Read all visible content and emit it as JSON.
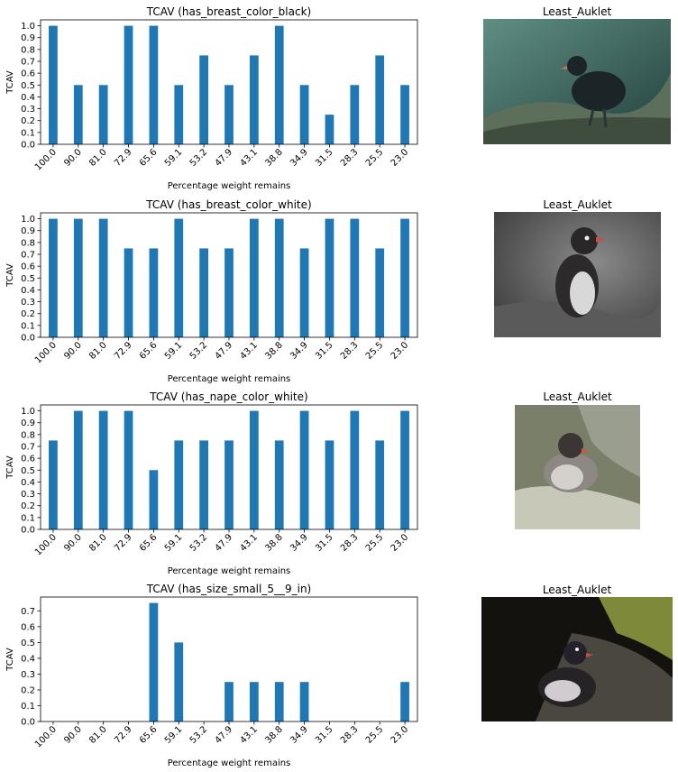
{
  "chart_data": [
    {
      "type": "bar",
      "title": "TCAV (has_breast_color_black)",
      "xlabel": "Percentage weight remains",
      "ylabel": "TCAV",
      "categories": [
        "100.0",
        "90.0",
        "81.0",
        "72.9",
        "65.6",
        "59.1",
        "53.2",
        "47.9",
        "43.1",
        "38.8",
        "34.9",
        "31.5",
        "28.3",
        "25.5",
        "23.0"
      ],
      "values": [
        1.0,
        0.5,
        0.5,
        1.0,
        1.0,
        0.5,
        0.75,
        0.5,
        0.75,
        1.0,
        0.5,
        0.25,
        0.5,
        0.75,
        0.5
      ],
      "yticks": [
        "0.0",
        "0.1",
        "0.2",
        "0.3",
        "0.4",
        "0.5",
        "0.6",
        "0.7",
        "0.8",
        "0.9",
        "1.0"
      ],
      "ylim": [
        0,
        1.05
      ],
      "grid": false,
      "color": "#1f77b4"
    },
    {
      "type": "bar",
      "title": "TCAV (has_breast_color_white)",
      "xlabel": "Percentage weight remains",
      "ylabel": "TCAV",
      "categories": [
        "100.0",
        "90.0",
        "81.0",
        "72.9",
        "65.6",
        "59.1",
        "53.2",
        "47.9",
        "43.1",
        "38.8",
        "34.9",
        "31.5",
        "28.3",
        "25.5",
        "23.0"
      ],
      "values": [
        1.0,
        1.0,
        1.0,
        0.75,
        0.75,
        1.0,
        0.75,
        0.75,
        1.0,
        1.0,
        0.75,
        1.0,
        1.0,
        0.75,
        1.0
      ],
      "yticks": [
        "0.0",
        "0.1",
        "0.2",
        "0.3",
        "0.4",
        "0.5",
        "0.6",
        "0.7",
        "0.8",
        "0.9",
        "1.0"
      ],
      "ylim": [
        0,
        1.05
      ],
      "grid": false,
      "color": "#1f77b4"
    },
    {
      "type": "bar",
      "title": "TCAV (has_nape_color_white)",
      "xlabel": "Percentage weight remains",
      "ylabel": "TCAV",
      "categories": [
        "100.0",
        "90.0",
        "81.0",
        "72.9",
        "65.6",
        "59.1",
        "53.2",
        "47.9",
        "43.1",
        "38.8",
        "34.9",
        "31.5",
        "28.3",
        "25.5",
        "23.0"
      ],
      "values": [
        0.75,
        1.0,
        1.0,
        1.0,
        0.5,
        0.75,
        0.75,
        0.75,
        1.0,
        0.75,
        1.0,
        0.75,
        1.0,
        0.75,
        1.0
      ],
      "yticks": [
        "0.0",
        "0.1",
        "0.2",
        "0.3",
        "0.4",
        "0.5",
        "0.6",
        "0.7",
        "0.8",
        "0.9",
        "1.0"
      ],
      "ylim": [
        0,
        1.05
      ],
      "grid": false,
      "color": "#1f77b4"
    },
    {
      "type": "bar",
      "title": "TCAV (has_size_small_5__9_in)",
      "xlabel": "Percentage weight remains",
      "ylabel": "TCAV",
      "categories": [
        "100.0",
        "90.0",
        "81.0",
        "72.9",
        "65.6",
        "59.1",
        "53.2",
        "47.9",
        "43.1",
        "38.8",
        "34.9",
        "31.5",
        "28.3",
        "25.5",
        "23.0"
      ],
      "values": [
        0,
        0,
        0,
        0,
        0.75,
        0.5,
        0,
        0.25,
        0.25,
        0.25,
        0.25,
        0,
        0,
        0,
        0.25
      ],
      "yticks": [
        "0.0",
        "0.1",
        "0.2",
        "0.3",
        "0.4",
        "0.5",
        "0.6",
        "0.7"
      ],
      "ylim": [
        0,
        0.7875
      ],
      "grid": false,
      "color": "#1f77b4"
    }
  ],
  "images": [
    {
      "title": "Least_Auklet",
      "icon": "bird-photo-icon"
    },
    {
      "title": "Least_Auklet",
      "icon": "bird-photo-icon"
    },
    {
      "title": "Least_Auklet",
      "icon": "bird-photo-icon"
    },
    {
      "title": "Least_Auklet",
      "icon": "bird-photo-icon"
    }
  ]
}
